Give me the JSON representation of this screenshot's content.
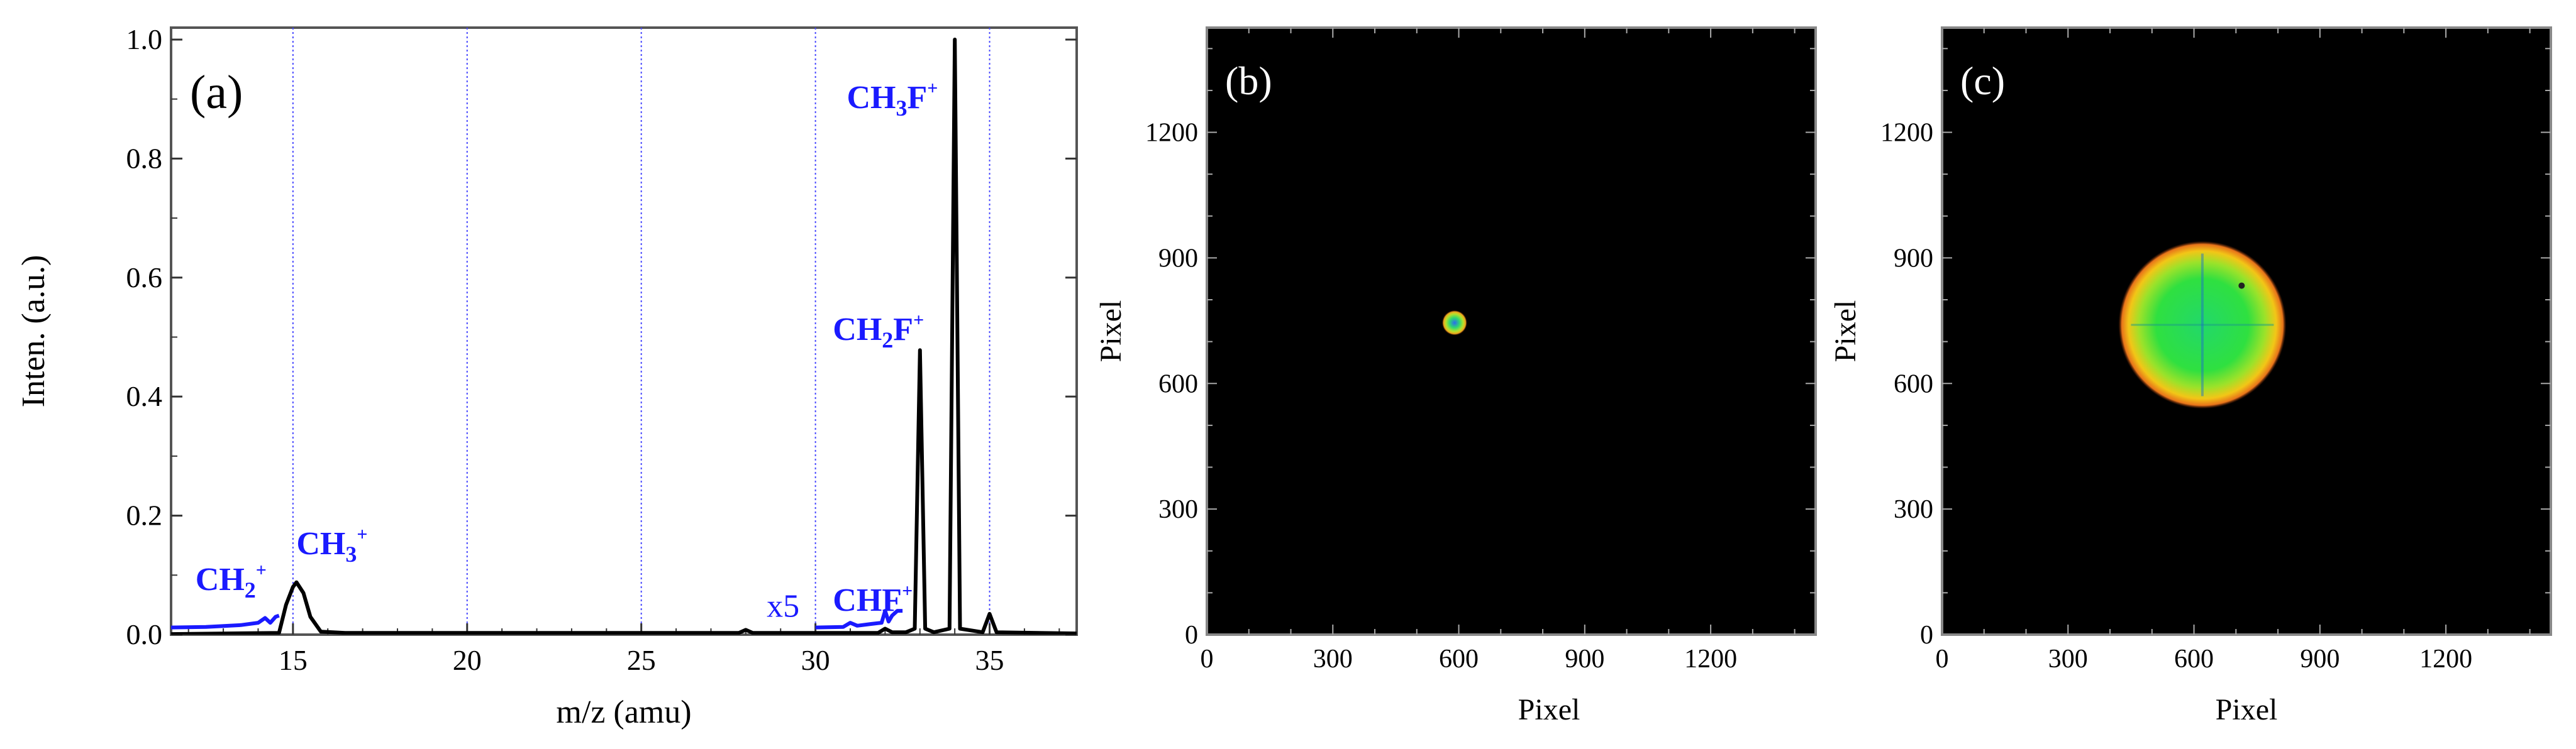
{
  "chart_data": [
    {
      "type": "line",
      "panel_label": "(a)",
      "xlabel": "m/z (amu)",
      "ylabel": "Inten. (a.u.)",
      "xlim": [
        11.5,
        37.5
      ],
      "ylim": [
        0,
        1.02
      ],
      "xticks": [
        "15",
        "20",
        "25",
        "30",
        "35"
      ],
      "yticks": [
        "0.0",
        "0.2",
        "0.4",
        "0.6",
        "0.8",
        "1.0"
      ],
      "vertical_gridlines_x": [
        15,
        20,
        25,
        30,
        35
      ],
      "series": [
        {
          "color": "#000000",
          "x": [
            11.5,
            14.6,
            14.8,
            15.0,
            15.1,
            15.3,
            15.5,
            15.8,
            16.5,
            27.8,
            28.0,
            28.2,
            31.8,
            32.0,
            32.2,
            32.6,
            32.85,
            33.0,
            33.15,
            33.4,
            33.85,
            34.0,
            34.15,
            34.8,
            35.0,
            35.2,
            37.5
          ],
          "y": [
            0.001,
            0.003,
            0.05,
            0.08,
            0.088,
            0.07,
            0.03,
            0.005,
            0.003,
            0.003,
            0.008,
            0.003,
            0.003,
            0.01,
            0.004,
            0.004,
            0.01,
            0.478,
            0.01,
            0.004,
            0.01,
            1.0,
            0.01,
            0.004,
            0.035,
            0.004,
            0.002
          ]
        },
        {
          "name": "x5",
          "color": "#1a1aff",
          "segments": [
            {
              "x": [
                11.5,
                12.5,
                13.5,
                14.0,
                14.2,
                14.35,
                14.5,
                14.6
              ],
              "y": [
                0.012,
                0.013,
                0.016,
                0.02,
                0.028,
                0.02,
                0.03,
                0.032
              ]
            },
            {
              "x": [
                30.0,
                30.8,
                31.0,
                31.2,
                31.6,
                31.9,
                32.0,
                32.1,
                32.2,
                32.35,
                32.5
              ],
              "y": [
                0.012,
                0.013,
                0.02,
                0.015,
                0.018,
                0.02,
                0.04,
                0.022,
                0.032,
                0.04,
                0.04
              ]
            }
          ]
        }
      ],
      "annotations": [
        {
          "main": "CH",
          "sub": "2",
          "sup": "+",
          "x": 12.2,
          "y": 0.075
        },
        {
          "main": "CH",
          "sub": "3",
          "sup": "+",
          "x": 15.1,
          "y": 0.135
        },
        {
          "main": "CHF",
          "sub": "",
          "sup": "+",
          "x": 30.5,
          "y": 0.04
        },
        {
          "main": "CH",
          "sub": "2",
          "sup": "+",
          "tail": "F",
          "x": 30.5,
          "y": 0.495
        },
        {
          "main": "CH",
          "sub": "3",
          "sup": "+",
          "tail": "F",
          "x": 30.9,
          "y": 0.885
        },
        {
          "main": "x5",
          "sub": "",
          "sup": "",
          "x": 28.6,
          "y": 0.03
        }
      ],
      "colors": {
        "spectrum": "#000000",
        "scaled": "#1a1aff",
        "gridlines": "#4a4aff"
      }
    },
    {
      "type": "heatmap",
      "panel_label": "(b)",
      "xlabel": "Pixel",
      "ylabel": "Pixel",
      "xlim": [
        0,
        1450
      ],
      "ylim": [
        0,
        1450
      ],
      "xticks": [
        "0",
        "300",
        "600",
        "900",
        "1200"
      ],
      "yticks": [
        "0",
        "300",
        "600",
        "900",
        "1200"
      ],
      "background": "#000000",
      "spot": {
        "center": [
          590,
          745
        ],
        "radius": 30,
        "color": "green/yellow with orange rim"
      }
    },
    {
      "type": "heatmap",
      "panel_label": "(c)",
      "xlabel": "Pixel",
      "ylabel": "Pixel",
      "xlim": [
        0,
        1450
      ],
      "ylim": [
        0,
        1450
      ],
      "xticks": [
        "0",
        "300",
        "600",
        "900",
        "1200"
      ],
      "yticks": [
        "0",
        "300",
        "600",
        "900",
        "1200"
      ],
      "background": "#000000",
      "spot": {
        "center": [
          620,
          740
        ],
        "radius": 200,
        "color": "green core with yellow-orange rim"
      }
    }
  ]
}
